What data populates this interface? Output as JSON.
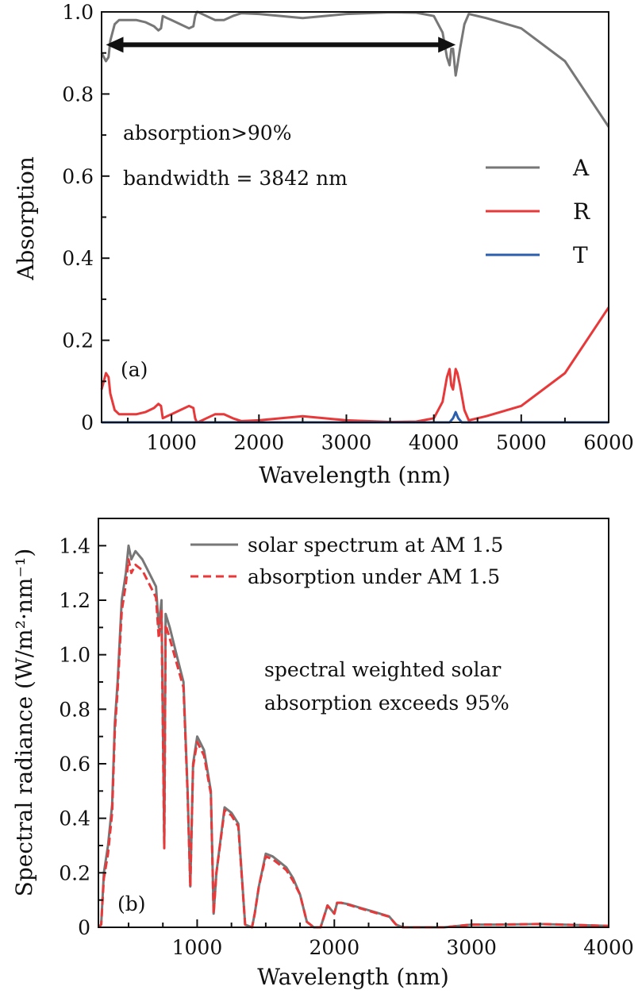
{
  "colors": {
    "A": "#777777",
    "R": "#e8393a",
    "T": "#2b5fad",
    "solar": "#777777",
    "absorbed": "#e8393a",
    "arrow": "#111111"
  },
  "chart_data": [
    {
      "type": "line",
      "panel_label": "(a)",
      "xlabel": "Wavelength (nm)",
      "ylabel": "Absorption",
      "xlim": [
        200,
        6000
      ],
      "ylim": [
        0,
        1.0
      ],
      "xticks": [
        1000,
        2000,
        3000,
        4000,
        5000,
        6000
      ],
      "xtick_labels": [
        "1000",
        "2000",
        "3000",
        "4000",
        "5000",
        "6000"
      ],
      "yticks": [
        0,
        0.2,
        0.4,
        0.6,
        0.8,
        1.0
      ],
      "ytick_labels": [
        "0",
        "0.2",
        "0.4",
        "0.6",
        "0.8",
        "1.0"
      ],
      "legend_position": "right",
      "annotations": [
        "absorption>90%",
        "bandwidth = 3842 nm"
      ],
      "arrow": {
        "x": [
          250,
          4250
        ],
        "y": 0.92
      },
      "series": [
        {
          "name": "A",
          "x": [
            200,
            250,
            280,
            300,
            350,
            400,
            500,
            600,
            700,
            800,
            850,
            880,
            900,
            950,
            1000,
            1100,
            1200,
            1250,
            1270,
            1290,
            1300,
            1400,
            1500,
            1600,
            1700,
            1800,
            2000,
            2500,
            3000,
            3500,
            3800,
            4000,
            4100,
            4150,
            4180,
            4200,
            4220,
            4250,
            4270,
            4300,
            4350,
            4400,
            4500,
            4600,
            5000,
            5500,
            6000
          ],
          "y": [
            0.9,
            0.88,
            0.89,
            0.93,
            0.97,
            0.98,
            0.98,
            0.98,
            0.975,
            0.965,
            0.955,
            0.96,
            0.99,
            0.985,
            0.98,
            0.97,
            0.96,
            0.965,
            0.99,
            1.0,
            1.0,
            0.99,
            0.98,
            0.98,
            0.99,
            0.997,
            0.995,
            0.985,
            0.995,
            0.999,
            0.998,
            0.99,
            0.95,
            0.89,
            0.87,
            0.91,
            0.91,
            0.845,
            0.87,
            0.91,
            0.97,
            0.995,
            0.99,
            0.985,
            0.96,
            0.88,
            0.72
          ]
        },
        {
          "name": "R",
          "x": [
            200,
            250,
            280,
            300,
            350,
            400,
            500,
            600,
            700,
            800,
            850,
            880,
            900,
            950,
            1000,
            1100,
            1200,
            1250,
            1270,
            1290,
            1300,
            1400,
            1500,
            1600,
            1700,
            1800,
            2000,
            2500,
            3000,
            3500,
            3800,
            4000,
            4100,
            4150,
            4180,
            4200,
            4220,
            4250,
            4270,
            4300,
            4350,
            4400,
            4500,
            4600,
            5000,
            5500,
            6000
          ],
          "y": [
            0.08,
            0.12,
            0.11,
            0.07,
            0.03,
            0.02,
            0.02,
            0.02,
            0.025,
            0.035,
            0.045,
            0.04,
            0.01,
            0.015,
            0.02,
            0.03,
            0.04,
            0.035,
            0.01,
            0.0,
            0.0,
            0.01,
            0.02,
            0.02,
            0.01,
            0.003,
            0.005,
            0.015,
            0.005,
            0.001,
            0.002,
            0.01,
            0.05,
            0.11,
            0.13,
            0.09,
            0.08,
            0.13,
            0.12,
            0.09,
            0.03,
            0.005,
            0.01,
            0.015,
            0.04,
            0.12,
            0.28
          ]
        },
        {
          "name": "T",
          "x": [
            200,
            4180,
            4220,
            4250,
            4280,
            4320,
            6000
          ],
          "y": [
            0,
            0,
            0.01,
            0.025,
            0.01,
            0,
            0
          ]
        }
      ]
    },
    {
      "type": "line",
      "panel_label": "(b)",
      "xlabel": "Wavelength (nm)",
      "ylabel": "Spectral radiance (W/m²·nm⁻¹)",
      "xlim": [
        280,
        4000
      ],
      "ylim": [
        0,
        1.5
      ],
      "xticks": [
        1000,
        2000,
        3000,
        4000
      ],
      "xtick_labels": [
        "1000",
        "2000",
        "3000",
        "4000"
      ],
      "yticks": [
        0,
        0.2,
        0.4,
        0.6,
        0.8,
        1.0,
        1.2,
        1.4
      ],
      "ytick_labels": [
        "0",
        "0.2",
        "0.4",
        "0.6",
        "0.8",
        "1.0",
        "1.2",
        "1.4"
      ],
      "legend_position": "top-right",
      "annotations": [
        "spectral weighted solar",
        "absorption exceeds 95%"
      ],
      "series": [
        {
          "name": "solar spectrum at AM 1.5",
          "style": "solid",
          "x": [
            280,
            300,
            320,
            350,
            380,
            400,
            420,
            450,
            480,
            500,
            520,
            550,
            600,
            650,
            700,
            720,
            740,
            760,
            770,
            800,
            850,
            900,
            930,
            950,
            970,
            1000,
            1050,
            1100,
            1120,
            1140,
            1200,
            1250,
            1300,
            1350,
            1400,
            1420,
            1450,
            1500,
            1550,
            1600,
            1650,
            1700,
            1750,
            1800,
            1850,
            1900,
            1950,
            2000,
            2020,
            2050,
            2100,
            2200,
            2300,
            2400,
            2450,
            2500,
            2600,
            2800,
            3000,
            3200,
            3500,
            3800,
            4000
          ],
          "y": [
            0,
            0.01,
            0.2,
            0.3,
            0.45,
            0.75,
            0.9,
            1.2,
            1.3,
            1.4,
            1.35,
            1.38,
            1.35,
            1.3,
            1.25,
            1.1,
            1.2,
            0.3,
            1.15,
            1.1,
            1.0,
            0.9,
            0.5,
            0.15,
            0.6,
            0.7,
            0.65,
            0.5,
            0.05,
            0.2,
            0.44,
            0.42,
            0.38,
            0.01,
            0.0,
            0.05,
            0.15,
            0.27,
            0.26,
            0.24,
            0.22,
            0.18,
            0.12,
            0.02,
            0.0,
            0.0,
            0.08,
            0.05,
            0.09,
            0.09,
            0.085,
            0.07,
            0.055,
            0.04,
            0.01,
            0.0,
            0.0,
            0.0,
            0.01,
            0.01,
            0.012,
            0.008,
            0.005
          ]
        },
        {
          "name": "absorption under AM 1.5",
          "style": "dashed",
          "x": [
            280,
            300,
            320,
            350,
            380,
            400,
            420,
            450,
            480,
            500,
            520,
            550,
            600,
            650,
            700,
            720,
            740,
            760,
            770,
            800,
            850,
            900,
            930,
            950,
            970,
            1000,
            1050,
            1100,
            1120,
            1140,
            1200,
            1250,
            1300,
            1350,
            1400,
            1420,
            1450,
            1500,
            1550,
            1600,
            1650,
            1700,
            1750,
            1800,
            1850,
            1900,
            1950,
            2000,
            2020,
            2050,
            2100,
            2200,
            2300,
            2400,
            2450,
            2500,
            2600,
            2800,
            3000,
            3200,
            3500,
            3800,
            4000
          ],
          "y": [
            0,
            0.01,
            0.18,
            0.27,
            0.42,
            0.72,
            0.87,
            1.16,
            1.26,
            1.35,
            1.3,
            1.33,
            1.31,
            1.26,
            1.21,
            1.06,
            1.16,
            0.29,
            1.11,
            1.06,
            0.97,
            0.88,
            0.49,
            0.15,
            0.59,
            0.68,
            0.63,
            0.49,
            0.05,
            0.2,
            0.43,
            0.41,
            0.37,
            0.01,
            0.0,
            0.05,
            0.15,
            0.26,
            0.25,
            0.23,
            0.21,
            0.17,
            0.12,
            0.02,
            0.0,
            0.0,
            0.08,
            0.05,
            0.09,
            0.09,
            0.083,
            0.068,
            0.053,
            0.039,
            0.01,
            0.0,
            0.0,
            0.0,
            0.01,
            0.01,
            0.012,
            0.008,
            0.005
          ]
        }
      ]
    }
  ]
}
